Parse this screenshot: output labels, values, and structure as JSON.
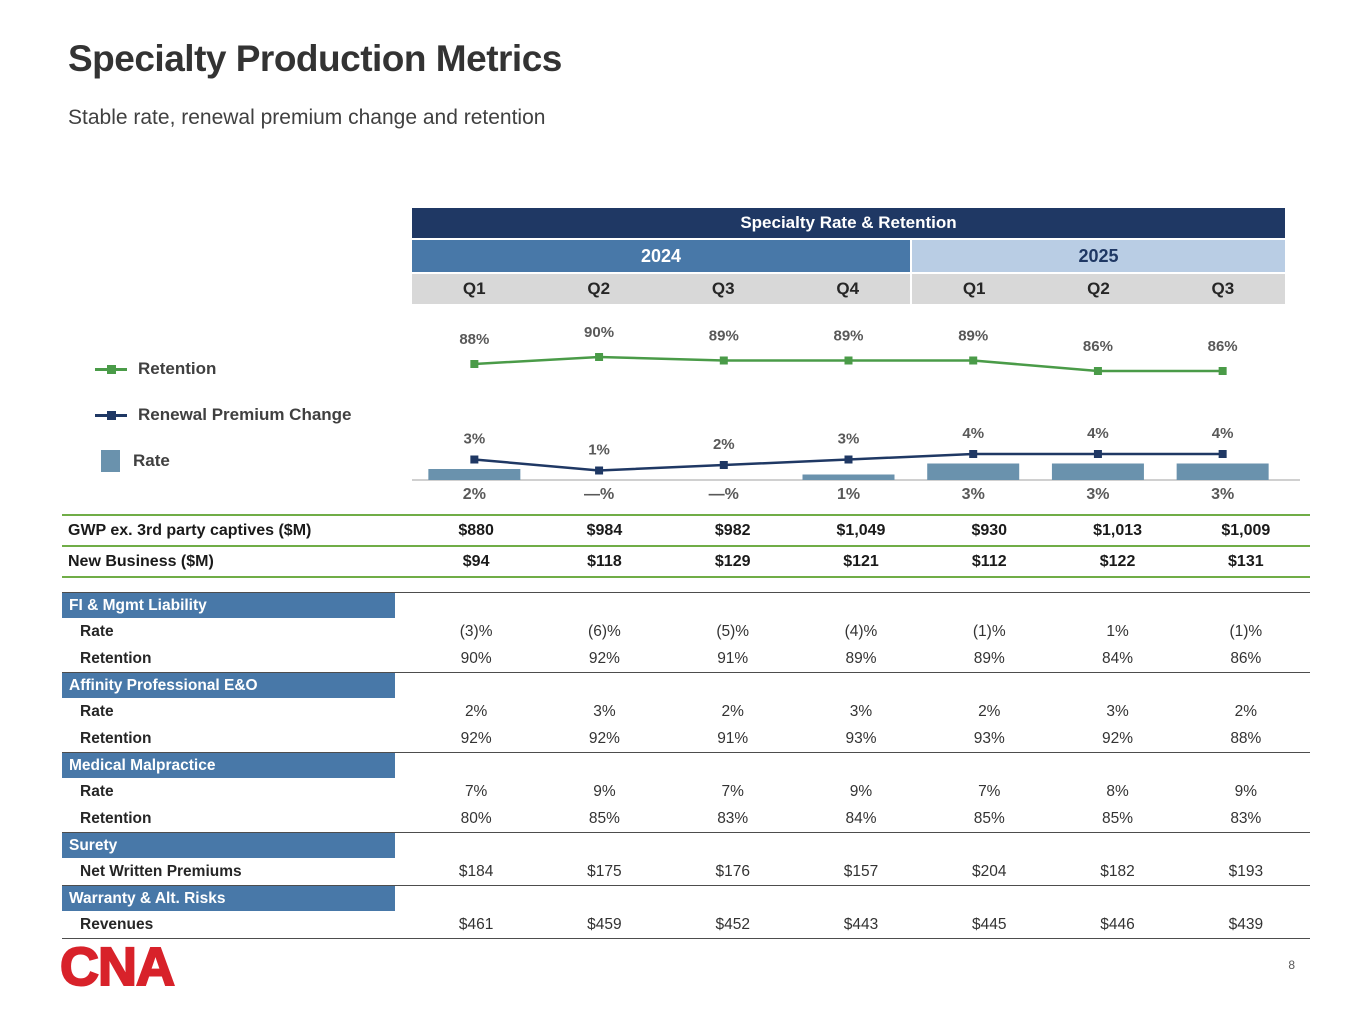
{
  "slide": {
    "title": "Specialty Production Metrics",
    "subtitle": "Stable rate, renewal premium change and retention",
    "page_number": "8",
    "logo_text": "CNA"
  },
  "colors": {
    "navy": "#1f3864",
    "steel_blue": "#4878a8",
    "light_blue": "#b9cde4",
    "quarter_gray": "#d8d8d8",
    "retention_green": "#4a9b48",
    "separator_green": "#70ad47",
    "bar_blue": "#6a92ad",
    "logo_red": "#d8222a"
  },
  "legend": {
    "items": [
      {
        "label": "Retention",
        "icon": "line-marker",
        "color": "#4a9b48"
      },
      {
        "label": "Renewal Premium Change",
        "icon": "line-marker",
        "color": "#1f3864"
      },
      {
        "label": "Rate",
        "icon": "bar",
        "color": "#6a92ad"
      }
    ]
  },
  "chart_data": {
    "type": "line+bar",
    "title": "Specialty Rate & Retention",
    "year_groups": [
      {
        "label": "2024",
        "span": 4
      },
      {
        "label": "2025",
        "span": 3
      }
    ],
    "categories": [
      "Q1",
      "Q2",
      "Q3",
      "Q4",
      "Q1",
      "Q2",
      "Q3"
    ],
    "series": [
      {
        "name": "Retention",
        "type": "line",
        "color": "#4a9b48",
        "values": [
          88,
          90,
          89,
          89,
          89,
          86,
          86
        ],
        "labels": [
          "88%",
          "90%",
          "89%",
          "89%",
          "89%",
          "86%",
          "86%"
        ]
      },
      {
        "name": "Renewal Premium Change",
        "type": "line",
        "color": "#1f3864",
        "values": [
          3,
          1,
          2,
          3,
          4,
          4,
          4
        ],
        "labels": [
          "3%",
          "1%",
          "2%",
          "3%",
          "4%",
          "4%",
          "4%"
        ]
      },
      {
        "name": "Rate",
        "type": "bar",
        "color": "#6a92ad",
        "values": [
          2,
          0,
          0,
          1,
          3,
          3,
          3
        ],
        "labels": [
          "2%",
          "—%",
          "—%",
          "1%",
          "3%",
          "3%",
          "3%"
        ]
      }
    ]
  },
  "table": {
    "top_rows": [
      {
        "label": "GWP ex. 3rd party captives ($M)",
        "values": [
          "$880",
          "$984",
          "$982",
          "$1,049",
          "$930",
          "$1,013",
          "$1,009"
        ]
      },
      {
        "label": "New Business ($M)",
        "values": [
          "$94",
          "$118",
          "$129",
          "$121",
          "$112",
          "$122",
          "$131"
        ]
      }
    ],
    "sections": [
      {
        "header": "FI & Mgmt Liability",
        "rows": [
          {
            "label": "Rate",
            "values": [
              "(3)%",
              "(6)%",
              "(5)%",
              "(4)%",
              "(1)%",
              "1%",
              "(1)%"
            ]
          },
          {
            "label": "Retention",
            "values": [
              "90%",
              "92%",
              "91%",
              "89%",
              "89%",
              "84%",
              "86%"
            ]
          }
        ]
      },
      {
        "header": "Affinity Professional E&O",
        "rows": [
          {
            "label": "Rate",
            "values": [
              "2%",
              "3%",
              "2%",
              "3%",
              "2%",
              "3%",
              "2%"
            ]
          },
          {
            "label": "Retention",
            "values": [
              "92%",
              "92%",
              "91%",
              "93%",
              "93%",
              "92%",
              "88%"
            ]
          }
        ]
      },
      {
        "header": "Medical Malpractice",
        "rows": [
          {
            "label": "Rate",
            "values": [
              "7%",
              "9%",
              "7%",
              "9%",
              "7%",
              "8%",
              "9%"
            ]
          },
          {
            "label": "Retention",
            "values": [
              "80%",
              "85%",
              "83%",
              "84%",
              "85%",
              "85%",
              "83%"
            ]
          }
        ]
      },
      {
        "header": "Surety",
        "rows": [
          {
            "label": "Net Written Premiums",
            "values": [
              "$184",
              "$175",
              "$176",
              "$157",
              "$204",
              "$182",
              "$193"
            ]
          }
        ]
      },
      {
        "header": "Warranty & Alt. Risks",
        "rows": [
          {
            "label": "Revenues",
            "values": [
              "$461",
              "$459",
              "$452",
              "$443",
              "$445",
              "$446",
              "$439"
            ]
          }
        ]
      }
    ]
  }
}
